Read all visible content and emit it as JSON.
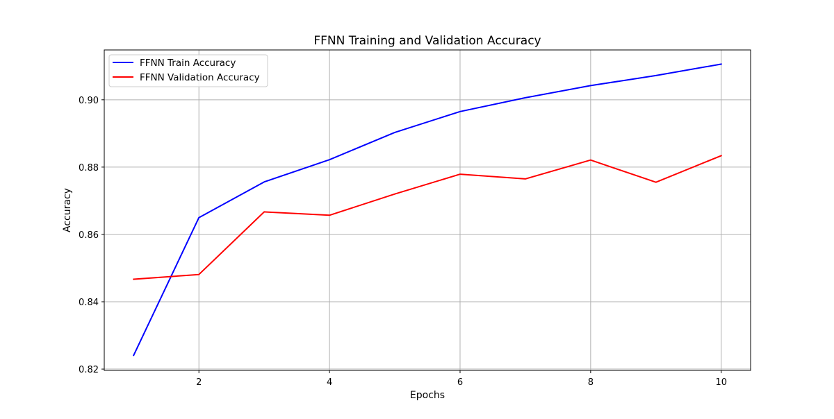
{
  "chart_data": {
    "type": "line",
    "title": "FFNN Training and Validation Accuracy",
    "xlabel": "Epochs",
    "ylabel": "Accuracy",
    "x": [
      1,
      2,
      3,
      4,
      5,
      6,
      7,
      8,
      9,
      10
    ],
    "xlim": [
      0.55,
      10.45
    ],
    "ylim": [
      0.8196,
      0.9148
    ],
    "xticks": [
      2,
      4,
      6,
      8,
      10
    ],
    "xtick_labels": [
      "2",
      "4",
      "6",
      "8",
      "10"
    ],
    "yticks": [
      0.82,
      0.84,
      0.86,
      0.88,
      0.9
    ],
    "ytick_labels": [
      "0.82",
      "0.84",
      "0.86",
      "0.88",
      "0.90"
    ],
    "grid": true,
    "legend_position": "top-left",
    "series": [
      {
        "name": "FFNN Train Accuracy",
        "color": "#0000ff",
        "values": [
          0.8241,
          0.865,
          0.8756,
          0.8822,
          0.8903,
          0.8965,
          0.9006,
          0.9042,
          0.9072,
          0.9106
        ]
      },
      {
        "name": "FFNN Validation Accuracy",
        "color": "#ff0000",
        "values": [
          0.8467,
          0.8481,
          0.8667,
          0.8657,
          0.872,
          0.8779,
          0.8765,
          0.8821,
          0.8755,
          0.8834
        ]
      }
    ]
  }
}
